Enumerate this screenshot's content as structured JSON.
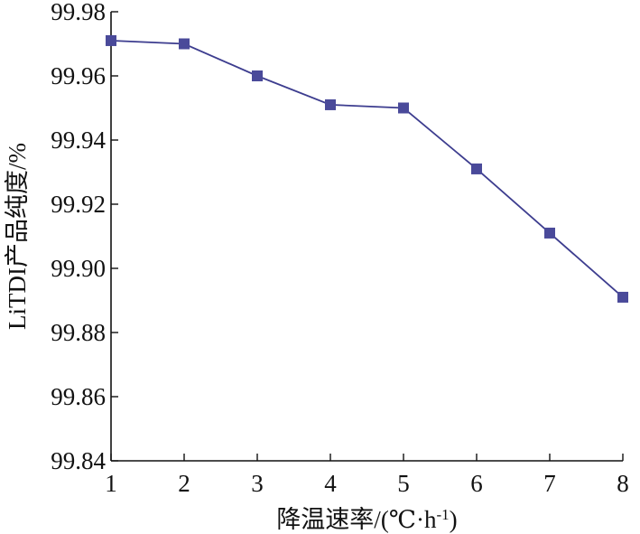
{
  "chart_data": {
    "type": "line",
    "title": "",
    "xlabel": "降温速率/(℃·h",
    "xlabel_sup": "-1",
    "xlabel_close": ")",
    "ylabel": "LiTDI产品纯度/%",
    "x": [
      1,
      2,
      3,
      4,
      5,
      6,
      7,
      8
    ],
    "series": [
      {
        "values": [
          99.971,
          99.97,
          99.96,
          99.951,
          99.95,
          99.931,
          99.911,
          99.891
        ]
      }
    ],
    "xlim": [
      1,
      8
    ],
    "ylim": [
      99.84,
      99.98
    ],
    "x_ticks": [
      "1",
      "2",
      "3",
      "4",
      "5",
      "6",
      "7",
      "8"
    ],
    "y_ticks": [
      "99.84",
      "99.86",
      "99.88",
      "99.90",
      "99.92",
      "99.94",
      "99.96",
      "99.98"
    ],
    "grid": false,
    "marker": "square",
    "line_color": "#3d3d8f",
    "marker_color": "#4a4a9a"
  }
}
